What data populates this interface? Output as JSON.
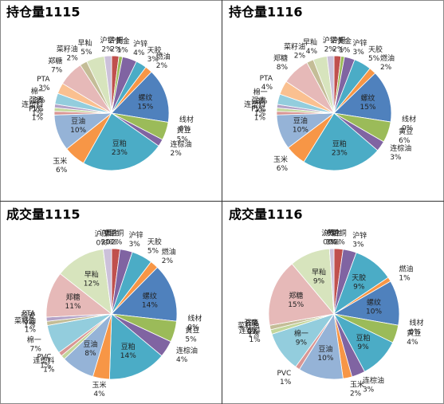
{
  "chart_data": [
    {
      "type": "pie",
      "title": "持仓量1115",
      "categories": [
        "沪铜",
        "黄金",
        "沪锌",
        "天胶",
        "燃油",
        "螺纹",
        "线材",
        "黄豆",
        "连棕油",
        "豆粕",
        "玉米",
        "豆油",
        "PVC",
        "连塑料",
        "强麦",
        "棉一",
        "PTA",
        "郑糖",
        "菜籽油",
        "早籼",
        "沪铝"
      ],
      "values": [
        2,
        1,
        4,
        3,
        2,
        15,
        0,
        5,
        2,
        23,
        6,
        10,
        1,
        1,
        1,
        3,
        3,
        7,
        2,
        5,
        2
      ],
      "value_labels": [
        "2%",
        "1%",
        "4%",
        "3%",
        "2%",
        "15%",
        "0%",
        "5%",
        "2%",
        "23%",
        "6%",
        "10%",
        "1%",
        "1%",
        "1%",
        "3%",
        "3%",
        "7%",
        "2%",
        "5%",
        "2%"
      ],
      "colors": [
        "#c0504d",
        "#9bbb59",
        "#8064a2",
        "#4bacc6",
        "#f79646",
        "#4f81bd",
        "#c0504d",
        "#9bbb59",
        "#8064a2",
        "#4bacc6",
        "#f79646",
        "#95b3d7",
        "#d99694",
        "#c3d69b",
        "#b3a2c7",
        "#93cddd",
        "#fac090",
        "#e6b9b8",
        "#c4bd97",
        "#d7e4bd",
        "#ccc1da"
      ]
    },
    {
      "type": "pie",
      "title": "持仓量1116",
      "categories": [
        "沪铜",
        "黄金",
        "沪锌",
        "天胶",
        "燃油",
        "螺纹",
        "线材",
        "黄豆",
        "连棕油",
        "豆粕",
        "玉米",
        "豆油",
        "PVC",
        "连塑料",
        "强麦",
        "棉一",
        "PTA",
        "郑糖",
        "菜籽油",
        "早籼",
        "沪铝"
      ],
      "values": [
        2,
        1,
        3,
        5,
        2,
        15,
        0,
        6,
        3,
        23,
        6,
        10,
        1,
        1,
        1,
        3,
        4,
        8,
        2,
        4,
        2
      ],
      "value_labels": [
        "2%",
        "1%",
        "3%",
        "5%",
        "2%",
        "15%",
        "0%",
        "6%",
        "3%",
        "23%",
        "6%",
        "10%",
        "1%",
        "1%",
        "1%",
        "3%",
        "4%",
        "8%",
        "2%",
        "4%",
        "2%"
      ],
      "colors": [
        "#c0504d",
        "#9bbb59",
        "#8064a2",
        "#4bacc6",
        "#f79646",
        "#4f81bd",
        "#c0504d",
        "#9bbb59",
        "#8064a2",
        "#4bacc6",
        "#f79646",
        "#95b3d7",
        "#d99694",
        "#c3d69b",
        "#b3a2c7",
        "#93cddd",
        "#fac090",
        "#e6b9b8",
        "#c4bd97",
        "#d7e4bd",
        "#ccc1da"
      ]
    },
    {
      "type": "pie",
      "title": "成交量1115",
      "categories": [
        "黄金",
        "沪铜",
        "沪锌",
        "天胶",
        "燃油",
        "螺纹",
        "线材",
        "黄豆",
        "连棕油",
        "豆粕",
        "玉米",
        "豆油",
        "连塑料",
        "PVC",
        "棉一",
        "菜籽油",
        "强麦",
        "PTA",
        "郑糖",
        "早籼",
        "沪深",
        "沪铝"
      ],
      "values": [
        0,
        2,
        3,
        5,
        2,
        14,
        0,
        5,
        4,
        14,
        4,
        8,
        1,
        1,
        7,
        1,
        1,
        0,
        11,
        12,
        0,
        2
      ],
      "value_labels": [
        "0%",
        "2%",
        "3%",
        "5%",
        "2%",
        "14%",
        "0%",
        "5%",
        "4%",
        "14%",
        "4%",
        "8%",
        "1%",
        "1%",
        "7%",
        "1%",
        "1%",
        "0%",
        "11%",
        "12%",
        "0%",
        "2%"
      ],
      "colors": [
        "#9bbb59",
        "#c0504d",
        "#8064a2",
        "#4bacc6",
        "#f79646",
        "#4f81bd",
        "#c0504d",
        "#9bbb59",
        "#8064a2",
        "#4bacc6",
        "#f79646",
        "#95b3d7",
        "#c3d69b",
        "#d99694",
        "#93cddd",
        "#c4bd97",
        "#b3a2c7",
        "#fac090",
        "#e6b9b8",
        "#d7e4bd",
        "#1f497d",
        "#ccc1da"
      ]
    },
    {
      "type": "pie",
      "title": "成交量1116",
      "categories": [
        "黄金",
        "沪铜",
        "沪锌",
        "天胶",
        "燃油",
        "螺纹",
        "线材",
        "黄豆",
        "豆粕",
        "连棕油",
        "玉米",
        "豆油",
        "PVC",
        "棉一",
        "连塑料",
        "菜籽油",
        "强麦",
        "PTA",
        "郑糖",
        "早籼",
        "沪深",
        "沪铝"
      ],
      "values": [
        0,
        2,
        3,
        9,
        1,
        10,
        0,
        4,
        9,
        3,
        2,
        10,
        1,
        9,
        1,
        1,
        0,
        0,
        15,
        9,
        0,
        1
      ],
      "value_labels": [
        "0%",
        "2%",
        "3%",
        "9%",
        "1%",
        "10%",
        "0%",
        "4%",
        "9%",
        "3%",
        "2%",
        "10%",
        "1%",
        "9%",
        "1%",
        "1%",
        "0%",
        "0%",
        "15%",
        "9%",
        "0%",
        "1%"
      ],
      "colors": [
        "#9bbb59",
        "#c0504d",
        "#8064a2",
        "#4bacc6",
        "#f79646",
        "#4f81bd",
        "#c0504d",
        "#9bbb59",
        "#4bacc6",
        "#8064a2",
        "#f79646",
        "#95b3d7",
        "#d99694",
        "#93cddd",
        "#c3d69b",
        "#c4bd97",
        "#b3a2c7",
        "#fac090",
        "#e6b9b8",
        "#d7e4bd",
        "#1f497d",
        "#ccc1da"
      ]
    }
  ]
}
